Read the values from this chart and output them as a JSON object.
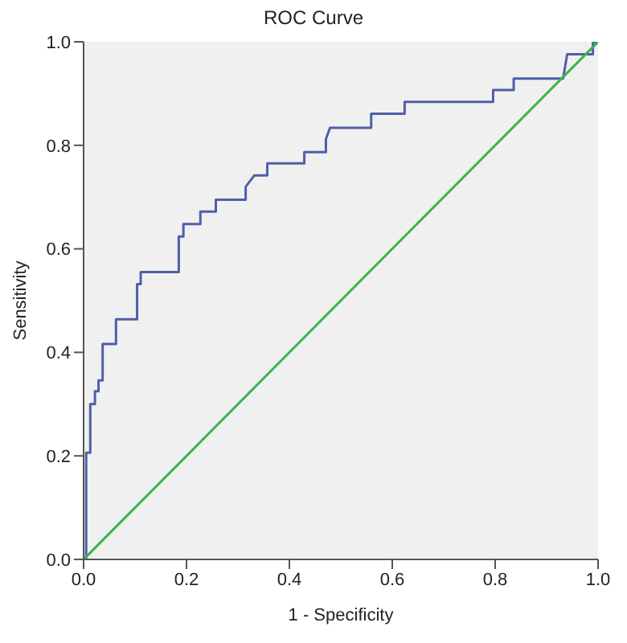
{
  "chart_data": {
    "type": "line",
    "title": "ROC Curve",
    "xlabel": "1 - Specificity",
    "ylabel": "Sensitivity",
    "xlim": [
      0,
      1
    ],
    "ylim": [
      0,
      1
    ],
    "xticks": [
      {
        "value": 0,
        "label": "0.0"
      },
      0.2,
      0.4,
      0.6,
      0.8,
      {
        "value": 1,
        "label": "1.0"
      }
    ],
    "yticks": [
      {
        "value": 0,
        "label": "0.0"
      },
      0.2,
      0.4,
      0.6,
      0.8,
      {
        "value": 1,
        "label": "1.0"
      }
    ],
    "grid": false,
    "marker": "none",
    "line_style": "solid",
    "series": [
      {
        "color": "#4f5fa8",
        "x": [
          0,
          0.005,
          0.005,
          0.013,
          0.013,
          0.022,
          0.022,
          0.029,
          0.029,
          0.037,
          0.037,
          0.063,
          0.063,
          0.104,
          0.104,
          0.111,
          0.111,
          0.185,
          0.185,
          0.194,
          0.194,
          0.227,
          0.227,
          0.257,
          0.257,
          0.315,
          0.315,
          0.332,
          0.357,
          0.357,
          0.429,
          0.429,
          0.471,
          0.471,
          0.479,
          0.559,
          0.559,
          0.624,
          0.624,
          0.796,
          0.796,
          0.836,
          0.836,
          0.932,
          0.94,
          0.99,
          0.99,
          1
        ],
        "values": [
          0,
          0,
          0.206,
          0.206,
          0.3,
          0.3,
          0.325,
          0.325,
          0.346,
          0.346,
          0.416,
          0.416,
          0.464,
          0.464,
          0.532,
          0.532,
          0.555,
          0.555,
          0.624,
          0.624,
          0.648,
          0.648,
          0.672,
          0.672,
          0.695,
          0.695,
          0.72,
          0.742,
          0.742,
          0.765,
          0.765,
          0.787,
          0.787,
          0.812,
          0.834,
          0.834,
          0.861,
          0.861,
          0.884,
          0.884,
          0.907,
          0.907,
          0.929,
          0.929,
          0.976,
          0.976,
          0.998,
          1
        ]
      },
      {
        "color": "#3cb44b",
        "x": [
          0,
          1
        ],
        "values": [
          0,
          1
        ]
      }
    ]
  }
}
